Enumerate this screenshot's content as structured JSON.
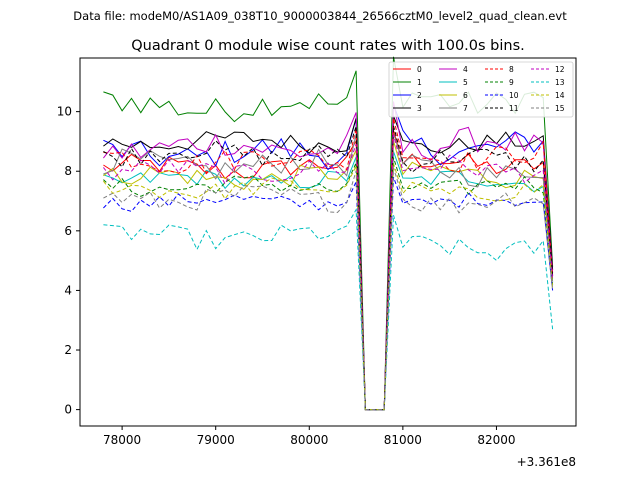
{
  "chart_data": {
    "type": "line",
    "suptitle": "Data file: modeM0/AS1A09_038T10_9000003844_26566cztM0_level2_quad_clean.evt",
    "title": "Quadrant 0 module wise count rates with 100.0s bins.",
    "xlabel": "",
    "ylabel": "",
    "x_offset_label": "+3.361e8",
    "xlim": [
      77550,
      82850
    ],
    "ylim": [
      -0.55,
      11.8
    ],
    "x_ticks": [
      78000,
      79000,
      80000,
      81000,
      82000
    ],
    "y_ticks": [
      0,
      2,
      4,
      6,
      8,
      10
    ],
    "legend_location": "upper right",
    "legend_columns": 4,
    "series": [
      {
        "name": "0",
        "color": "#ff0000",
        "dash": "solid",
        "base": 8.1,
        "amp": 0.35,
        "p2": 8.25,
        "end": 4.6
      },
      {
        "name": "1",
        "color": "#008000",
        "dash": "solid",
        "base": 10.2,
        "amp": 0.45,
        "p2": 10.4,
        "end": 4.8
      },
      {
        "name": "2",
        "color": "#0000ff",
        "dash": "solid",
        "base": 8.6,
        "amp": 0.45,
        "p2": 8.8,
        "end": 4.7
      },
      {
        "name": "3",
        "color": "#000000",
        "dash": "solid",
        "base": 9.0,
        "amp": 0.3,
        "p2": 8.9,
        "end": 4.7
      },
      {
        "name": "4",
        "color": "#c000c0",
        "dash": "solid",
        "base": 8.8,
        "amp": 0.45,
        "p2": 8.9,
        "end": 4.5
      },
      {
        "name": "5",
        "color": "#00bfbf",
        "dash": "solid",
        "base": 7.7,
        "amp": 0.3,
        "p2": 7.7,
        "end": 4.3
      },
      {
        "name": "6",
        "color": "#bfbf00",
        "dash": "solid",
        "base": 7.8,
        "amp": 0.35,
        "p2": 7.9,
        "end": 4.4
      },
      {
        "name": "7",
        "color": "#808080",
        "dash": "solid",
        "base": 8.2,
        "amp": 0.4,
        "p2": 8.0,
        "end": 4.3
      },
      {
        "name": "8",
        "color": "#ff0000",
        "dash": "dashed",
        "base": 8.4,
        "amp": 0.4,
        "p2": 8.5,
        "end": 4.5
      },
      {
        "name": "9",
        "color": "#008000",
        "dash": "dashed",
        "base": 7.5,
        "amp": 0.3,
        "p2": 7.5,
        "end": 4.2
      },
      {
        "name": "10",
        "color": "#0000ff",
        "dash": "dashed",
        "base": 7.0,
        "amp": 0.25,
        "p2": 7.0,
        "end": 4.0
      },
      {
        "name": "11",
        "color": "#000000",
        "dash": "dashed",
        "base": 8.6,
        "amp": 0.35,
        "p2": 8.4,
        "end": 4.5
      },
      {
        "name": "12",
        "color": "#c000c0",
        "dash": "dashed",
        "base": 8.0,
        "amp": 0.35,
        "p2": 8.1,
        "end": 4.4
      },
      {
        "name": "13",
        "color": "#00bfbf",
        "dash": "dashed",
        "base": 5.8,
        "amp": 0.35,
        "p2": 5.4,
        "end": 2.7
      },
      {
        "name": "14",
        "color": "#bfbf00",
        "dash": "dashed",
        "base": 7.4,
        "amp": 0.3,
        "p2": 7.3,
        "end": 4.1
      },
      {
        "name": "15",
        "color": "#808080",
        "dash": "dashed",
        "base": 7.1,
        "amp": 0.35,
        "p2": 7.0,
        "end": 4.0
      }
    ],
    "time_grid": {
      "start": 77800,
      "step": 100,
      "seg1_end": 80500,
      "gap_points": [
        80600,
        80700,
        80800
      ],
      "seg2_start": 80900,
      "seg2_end": 82500,
      "last": 82600
    },
    "grid": false
  }
}
